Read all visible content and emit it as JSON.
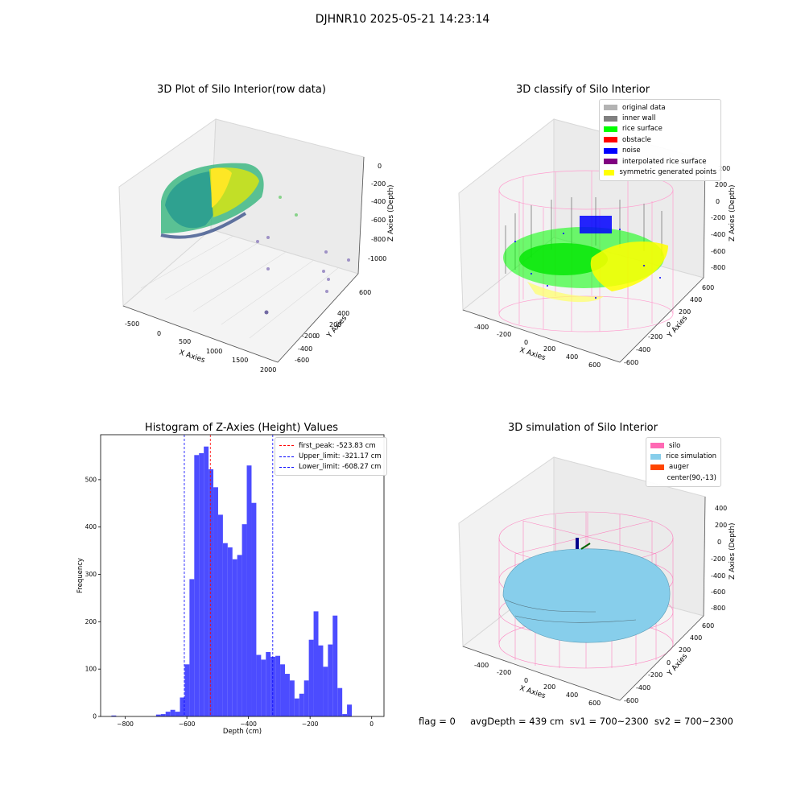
{
  "suptitle": "DJHNR10 2025-05-21 14:23:14",
  "panels": {
    "raw": {
      "title": "3D Plot of Silo Interior(row data)",
      "xlabel": "X Axies",
      "ylabel": "Y Axies",
      "zlabel": "Z Axies (Depth)",
      "xticks": [
        "-500",
        "0",
        "500",
        "1000",
        "1500",
        "2000"
      ],
      "yticks": [
        "600",
        "400",
        "200",
        "0",
        "-200",
        "-400",
        "-600"
      ],
      "zticks": [
        "0",
        "-200",
        "-400",
        "-600",
        "-800",
        "-1000"
      ]
    },
    "classify": {
      "title": "3D classify of Silo Interior",
      "xlabel": "X Axies",
      "ylabel": "Y Axies",
      "zlabel": "Z Axies (Depth)",
      "xticks": [
        "-400",
        "-200",
        "0",
        "200",
        "400",
        "600"
      ],
      "yticks": [
        "600",
        "400",
        "200",
        "0",
        "-200",
        "-400",
        "-600"
      ],
      "zticks": [
        "200",
        "0",
        "-200",
        "-400",
        "-600",
        "-800"
      ],
      "zticks_top": [
        "400",
        "200"
      ],
      "legend": [
        {
          "label": "original data",
          "color": "#b3b3b3"
        },
        {
          "label": "inner wall",
          "color": "#808080"
        },
        {
          "label": "rice surface",
          "color": "#00ff00"
        },
        {
          "label": "obstacle",
          "color": "#ff0000"
        },
        {
          "label": "noise",
          "color": "#0000ff"
        },
        {
          "label": "interpolated rice surface",
          "color": "#800080"
        },
        {
          "label": "symmetric generated points",
          "color": "#ffff00"
        }
      ]
    },
    "simulation": {
      "title": "3D simulation of Silo Interior",
      "xlabel": "X Axies",
      "ylabel": "Y Axies",
      "zlabel": "Z Axies (Depth)",
      "xticks": [
        "-400",
        "-200",
        "0",
        "200",
        "400",
        "600"
      ],
      "yticks": [
        "600",
        "400",
        "200",
        "0",
        "-200",
        "-400",
        "-600"
      ],
      "zticks": [
        "400",
        "200",
        "0",
        "-200",
        "-400",
        "-600",
        "-800"
      ],
      "legend": [
        {
          "label": "silo",
          "color": "#ff69b4"
        },
        {
          "label": "rice simulation",
          "color": "#87ceeb"
        },
        {
          "label": "auger",
          "color": "#ff4500"
        },
        {
          "label": "center(90,-13)",
          "color": "#ffffff"
        }
      ]
    }
  },
  "chart_data": {
    "type": "bar",
    "title": "Histogram of Z-Axies (Height) Values",
    "xlabel": "Depth (cm)",
    "ylabel": "Frequency",
    "xlim": [
      -880,
      40
    ],
    "ylim": [
      0,
      595
    ],
    "xticks": [
      -800,
      -600,
      -400,
      -200,
      0
    ],
    "yticks": [
      0,
      100,
      200,
      300,
      400,
      500
    ],
    "bar_color": "#4c4cff",
    "bin_start": -700,
    "bin_width": 15.5,
    "values": [
      4,
      5,
      10,
      14,
      10,
      40,
      110,
      290,
      552,
      556,
      570,
      522,
      484,
      426,
      366,
      357,
      332,
      341,
      406,
      530,
      451,
      130,
      120,
      136,
      126,
      128,
      110,
      90,
      76,
      38,
      48,
      76,
      162,
      222,
      150,
      105,
      152,
      213,
      60,
      5,
      25
    ],
    "outliers": [
      {
        "x": -845,
        "count": 2
      }
    ],
    "lines": [
      {
        "label": "first_peak: -523.83 cm",
        "x": -523.83,
        "color": "#ff0000"
      },
      {
        "label": "Upper_limit: -321.17 cm",
        "x": -321.17,
        "color": "#0000ff"
      },
      {
        "label": "Lower_limit: -608.27 cm",
        "x": -608.27,
        "color": "#0000ff"
      }
    ]
  },
  "status": {
    "text": "flag = 0     avgDepth = 439 cm  sv1 = 700~2300  sv2 = 700~2300"
  }
}
